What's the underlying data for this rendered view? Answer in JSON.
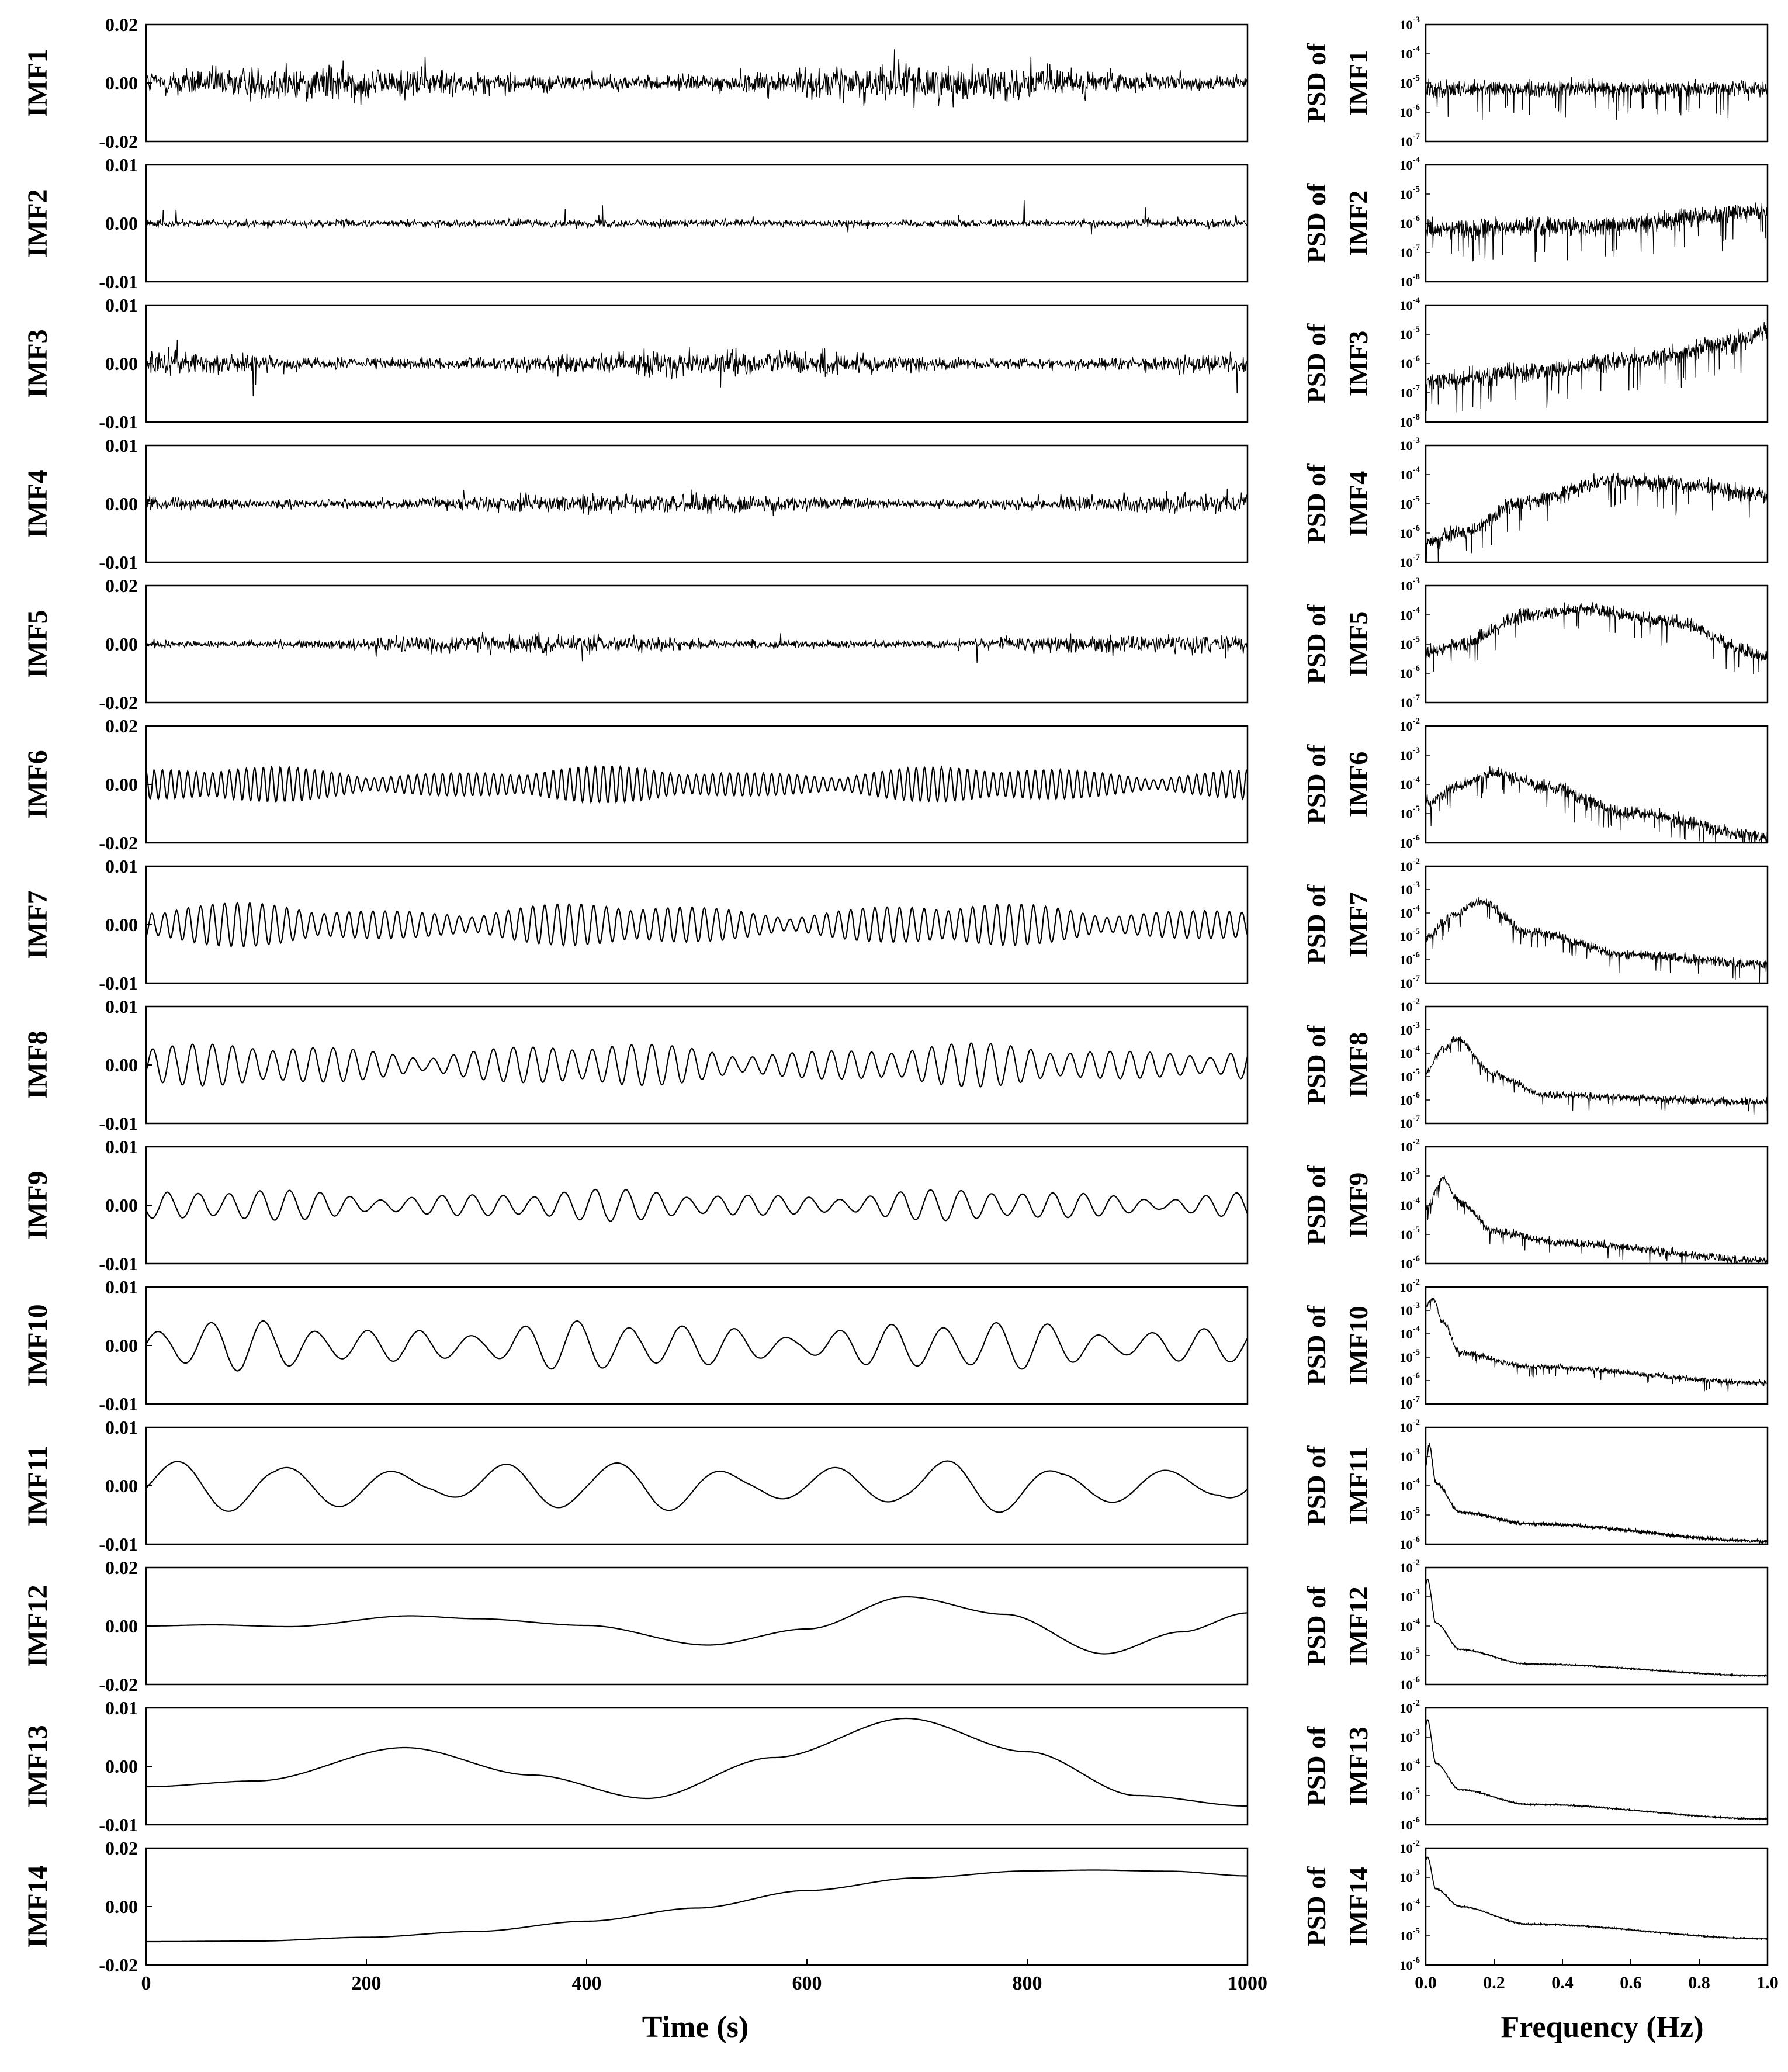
{
  "chart_data": [
    {
      "type": "line",
      "panel": "time",
      "xlabel": "Time (s)",
      "xlim": [
        0,
        1000
      ],
      "xticks": [
        "0",
        "200",
        "400",
        "600",
        "800",
        "1000"
      ],
      "series": [
        {
          "name": "IMF1",
          "ylim": [
            -0.02,
            0.02
          ],
          "yticks": [
            "0.02",
            "0.00",
            "-0.02"
          ],
          "amplitude": 0.005,
          "cycles": 0,
          "kind": "noise"
        },
        {
          "name": "IMF2",
          "ylim": [
            -0.01,
            0.01
          ],
          "yticks": [
            "0.01",
            "0.00",
            "-0.01"
          ],
          "amplitude": 0.0006,
          "cycles": 0,
          "kind": "spiky"
        },
        {
          "name": "IMF3",
          "ylim": [
            -0.01,
            0.01
          ],
          "yticks": [
            "0.01",
            "0.00",
            "-0.01"
          ],
          "amplitude": 0.0018,
          "cycles": 0,
          "kind": "noise"
        },
        {
          "name": "IMF4",
          "ylim": [
            -0.01,
            0.01
          ],
          "yticks": [
            "0.01",
            "0.00",
            "-0.01"
          ],
          "amplitude": 0.0015,
          "cycles": 0,
          "kind": "noise"
        },
        {
          "name": "IMF5",
          "ylim": [
            -0.02,
            0.02
          ],
          "yticks": [
            "0.02",
            "0.00",
            "-0.02"
          ],
          "amplitude": 0.0025,
          "cycles": 0,
          "kind": "noise"
        },
        {
          "name": "IMF6",
          "ylim": [
            -0.02,
            0.02
          ],
          "yticks": [
            "0.02",
            "0.00",
            "-0.02"
          ],
          "amplitude": 0.005,
          "cycles": 130,
          "kind": "osc"
        },
        {
          "name": "IMF7",
          "ylim": [
            -0.01,
            0.01
          ],
          "yticks": [
            "0.01",
            "0.00",
            "-0.01"
          ],
          "amplitude": 0.003,
          "cycles": 90,
          "kind": "osc"
        },
        {
          "name": "IMF8",
          "ylim": [
            -0.01,
            0.01
          ],
          "yticks": [
            "0.01",
            "0.00",
            "-0.01"
          ],
          "amplitude": 0.003,
          "cycles": 55,
          "kind": "osc"
        },
        {
          "name": "IMF9",
          "ylim": [
            -0.01,
            0.01
          ],
          "yticks": [
            "0.01",
            "0.00",
            "-0.01"
          ],
          "amplitude": 0.0022,
          "cycles": 36,
          "kind": "osc"
        },
        {
          "name": "IMF10",
          "ylim": [
            -0.01,
            0.01
          ],
          "yticks": [
            "0.01",
            "0.00",
            "-0.01"
          ],
          "amplitude": 0.0035,
          "cycles": 21,
          "kind": "osc"
        },
        {
          "name": "IMF11",
          "ylim": [
            -0.01,
            0.01
          ],
          "yticks": [
            "0.01",
            "0.00",
            "-0.01"
          ],
          "amplitude": 0.0038,
          "cycles": 10,
          "kind": "osc"
        },
        {
          "name": "IMF12",
          "ylim": [
            -0.02,
            0.02
          ],
          "yticks": [
            "0.02",
            "0.00",
            "-0.02"
          ],
          "x": [
            0,
            60,
            130,
            240,
            300,
            400,
            510,
            600,
            690,
            780,
            870,
            940,
            1000
          ],
          "y": [
            0.0,
            0.0004,
            -0.0002,
            0.0035,
            0.0025,
            0.0002,
            -0.0065,
            -0.001,
            0.01,
            0.004,
            -0.0095,
            -0.002,
            0.0045
          ]
        },
        {
          "name": "IMF13",
          "ylim": [
            -0.01,
            0.01
          ],
          "yticks": [
            "0.01",
            "0.00",
            "-0.01"
          ],
          "x": [
            0,
            100,
            235,
            350,
            455,
            570,
            690,
            800,
            900,
            1000
          ],
          "y": [
            -0.0035,
            -0.0025,
            0.0032,
            -0.0015,
            -0.0055,
            0.0015,
            0.0082,
            0.0025,
            -0.005,
            -0.0068
          ]
        },
        {
          "name": "IMF14",
          "ylim": [
            -0.02,
            0.02
          ],
          "yticks": [
            "0.02",
            "0.00",
            "-0.02"
          ],
          "x": [
            0,
            100,
            200,
            300,
            400,
            500,
            600,
            700,
            800,
            860,
            930,
            1000
          ],
          "y": [
            -0.012,
            -0.0118,
            -0.0105,
            -0.0085,
            -0.005,
            -0.0005,
            0.0055,
            0.0098,
            0.0122,
            0.0125,
            0.0121,
            0.0105
          ]
        }
      ]
    },
    {
      "type": "line",
      "panel": "frequency",
      "xlabel": "Frequency (Hz)",
      "xlim": [
        0,
        1.0
      ],
      "xticks": [
        "0.0",
        "0.2",
        "0.4",
        "0.6",
        "0.8",
        "1.0"
      ],
      "yscale": "log",
      "ylabel_prefix": "PSD of",
      "series": [
        {
          "name": "IMF1",
          "yexp": [
            -3,
            -7
          ],
          "x": [
            0,
            1.0
          ],
          "y": [
            -5.2,
            -5.2
          ],
          "noise": 0.25
        },
        {
          "name": "IMF2",
          "yexp": [
            -4,
            -8
          ],
          "x": [
            0,
            0.5,
            1.0
          ],
          "y": [
            -6.2,
            -6.1,
            -5.6
          ],
          "noise": 0.3
        },
        {
          "name": "IMF3",
          "yexp": [
            -4,
            -8
          ],
          "x": [
            0,
            0.3,
            0.6,
            0.9,
            1.0
          ],
          "y": [
            -6.6,
            -6.3,
            -5.9,
            -5.3,
            -4.9
          ],
          "noise": 0.3
        },
        {
          "name": "IMF4",
          "yexp": [
            -3,
            -7
          ],
          "x": [
            0,
            0.1,
            0.3,
            0.55,
            0.8,
            1.0
          ],
          "y": [
            -6.3,
            -6.0,
            -4.9,
            -4.2,
            -4.4,
            -4.7
          ],
          "noise": 0.25
        },
        {
          "name": "IMF5",
          "yexp": [
            -3,
            -7
          ],
          "x": [
            0,
            0.1,
            0.3,
            0.45,
            0.7,
            1.0
          ],
          "y": [
            -5.3,
            -5.0,
            -4.0,
            -3.8,
            -4.2,
            -5.4
          ],
          "noise": 0.22
        },
        {
          "name": "IMF6",
          "yexp": [
            -2,
            -6
          ],
          "x": [
            0,
            0.1,
            0.2,
            0.35,
            0.6,
            1.0
          ],
          "y": [
            -4.7,
            -4.0,
            -3.6,
            -4.1,
            -5.0,
            -5.8
          ],
          "noise": 0.22
        },
        {
          "name": "IMF7",
          "yexp": [
            -2,
            -7
          ],
          "x": [
            0,
            0.08,
            0.16,
            0.3,
            0.6,
            1.0
          ],
          "y": [
            -5.1,
            -4.1,
            -3.5,
            -4.8,
            -5.8,
            -6.2
          ],
          "noise": 0.2
        },
        {
          "name": "IMF8",
          "yexp": [
            -2,
            -7
          ],
          "x": [
            0,
            0.05,
            0.09,
            0.2,
            0.35,
            1.0
          ],
          "y": [
            -4.8,
            -3.8,
            -3.4,
            -4.9,
            -5.8,
            -6.1
          ],
          "noise": 0.16
        },
        {
          "name": "IMF9",
          "yexp": [
            -2,
            -6
          ],
          "x": [
            0,
            0.05,
            0.1,
            0.2,
            0.4,
            1.0
          ],
          "y": [
            -4.1,
            -3.1,
            -3.9,
            -4.9,
            -5.3,
            -5.9
          ],
          "noise": 0.14
        },
        {
          "name": "IMF10",
          "yexp": [
            -2,
            -7
          ],
          "x": [
            0,
            0.02,
            0.05,
            0.1,
            0.3,
            1.0
          ],
          "y": [
            -2.8,
            -2.5,
            -3.5,
            -4.8,
            -5.4,
            -6.1
          ],
          "noise": 0.12
        },
        {
          "name": "IMF11",
          "yexp": [
            -2,
            -6
          ],
          "x": [
            0,
            0.01,
            0.03,
            0.1,
            0.3,
            1.0
          ],
          "y": [
            -3.3,
            -2.6,
            -3.9,
            -4.9,
            -5.3,
            -5.9
          ],
          "noise": 0.05
        },
        {
          "name": "IMF12",
          "yexp": [
            -2,
            -6
          ],
          "x": [
            0,
            0.005,
            0.03,
            0.1,
            0.3,
            1.0
          ],
          "y": [
            -2.6,
            -2.4,
            -3.9,
            -4.8,
            -5.3,
            -5.7
          ],
          "noise": 0.02
        },
        {
          "name": "IMF13",
          "yexp": [
            -2,
            -6
          ],
          "x": [
            0,
            0.005,
            0.03,
            0.1,
            0.3,
            1.0
          ],
          "y": [
            -2.6,
            -2.4,
            -3.9,
            -4.8,
            -5.3,
            -5.8
          ],
          "noise": 0.02
        },
        {
          "name": "IMF14",
          "yexp": [
            -2,
            -6
          ],
          "x": [
            0,
            0.005,
            0.03,
            0.1,
            0.3,
            1.0
          ],
          "y": [
            -2.4,
            -2.3,
            -3.4,
            -4.0,
            -4.6,
            -5.1
          ],
          "noise": 0.02
        }
      ]
    }
  ]
}
